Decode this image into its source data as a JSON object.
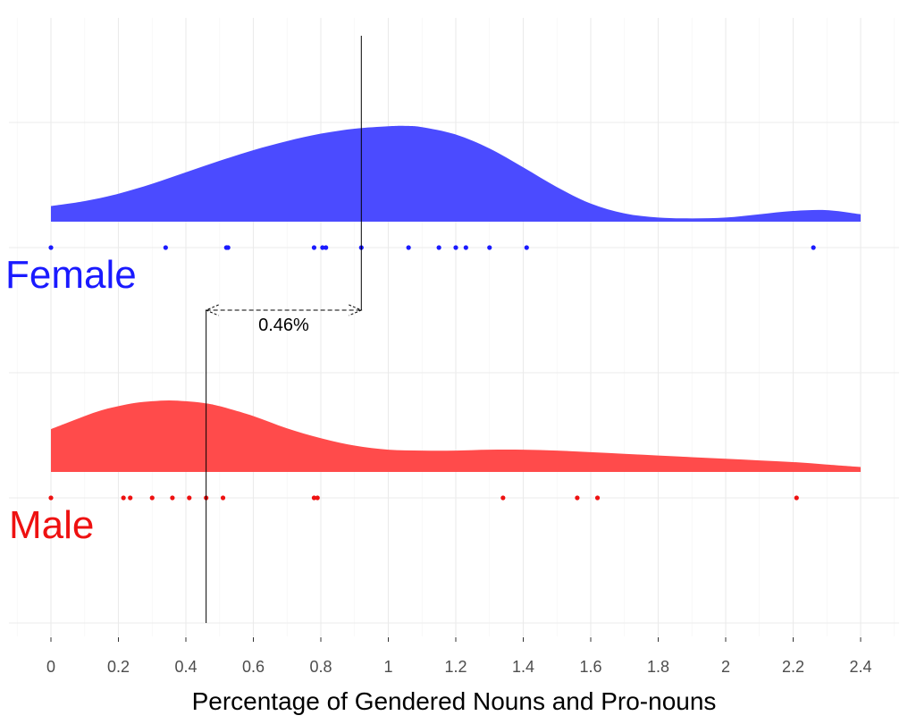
{
  "chart_data": {
    "type": "ridgeline-density",
    "xlabel": "Percentage of Gendered Nouns and Pro-nouns",
    "xlim": [
      0,
      2.4
    ],
    "xticks": [
      0,
      0.2,
      0.4,
      0.6,
      0.8,
      1,
      1.2,
      1.4,
      1.6,
      1.8,
      2,
      2.2,
      2.4
    ],
    "xtick_labels": [
      "0",
      "0.2",
      "0.4",
      "0.6",
      "0.8",
      "1",
      "1.2",
      "1.4",
      "1.6",
      "1.8",
      "2",
      "2.2",
      "2.4"
    ],
    "grid": true,
    "series": [
      {
        "name": "Female",
        "color": "#4B4BFF",
        "median": 0.92,
        "density": {
          "x": [
            0,
            0.1,
            0.2,
            0.3,
            0.4,
            0.5,
            0.6,
            0.7,
            0.8,
            0.9,
            1.0,
            1.05,
            1.1,
            1.2,
            1.3,
            1.4,
            1.5,
            1.6,
            1.7,
            1.8,
            1.9,
            2.0,
            2.1,
            2.2,
            2.3,
            2.4
          ],
          "y": [
            0.19,
            0.25,
            0.34,
            0.46,
            0.6,
            0.74,
            0.87,
            0.98,
            1.07,
            1.13,
            1.16,
            1.165,
            1.15,
            1.06,
            0.89,
            0.66,
            0.42,
            0.22,
            0.1,
            0.05,
            0.04,
            0.05,
            0.09,
            0.13,
            0.14,
            0.09
          ]
        },
        "points": [
          0,
          0.34,
          0.52,
          0.525,
          0.78,
          0.805,
          0.815,
          0.92,
          1.06,
          1.15,
          1.2,
          1.23,
          1.3,
          1.41,
          2.26
        ]
      },
      {
        "name": "Male",
        "color": "#FF4B4B",
        "median": 0.46,
        "density": {
          "x": [
            0,
            0.05,
            0.1,
            0.15,
            0.2,
            0.25,
            0.3,
            0.35,
            0.4,
            0.45,
            0.5,
            0.6,
            0.7,
            0.8,
            0.9,
            1.0,
            1.1,
            1.2,
            1.3,
            1.4,
            1.5,
            1.6,
            1.7,
            1.8,
            1.9,
            2.0,
            2.1,
            2.2,
            2.3,
            2.4
          ],
          "y": [
            0.52,
            0.6,
            0.68,
            0.75,
            0.8,
            0.84,
            0.86,
            0.87,
            0.86,
            0.84,
            0.8,
            0.68,
            0.53,
            0.41,
            0.32,
            0.27,
            0.26,
            0.26,
            0.27,
            0.27,
            0.26,
            0.24,
            0.22,
            0.2,
            0.18,
            0.16,
            0.14,
            0.12,
            0.09,
            0.06
          ]
        },
        "points": [
          0,
          0.215,
          0.235,
          0.3,
          0.36,
          0.41,
          0.46,
          0.51,
          0.78,
          0.79,
          1.34,
          1.56,
          1.62,
          2.21
        ]
      }
    ],
    "annotation": {
      "label": "0.46%",
      "from": 0.46,
      "to": 0.92,
      "style": "dashed double-arrow"
    }
  }
}
